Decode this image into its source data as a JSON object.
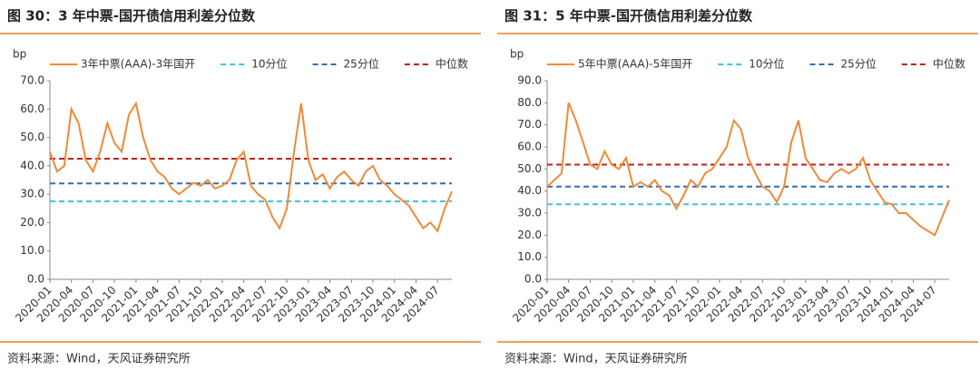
{
  "chart_data": [
    {
      "type": "line",
      "title": "图 30：3 年中票-国开债信用利差分位数",
      "y_label": "bp",
      "source": "资料来源：Wind，天风证券研究所",
      "categories": [
        "2020-01",
        null,
        null,
        "2020-04",
        null,
        null,
        "2020-07",
        null,
        null,
        "2020-10",
        null,
        null,
        "2021-01",
        null,
        null,
        "2021-04",
        null,
        null,
        "2021-07",
        null,
        null,
        "2021-10",
        null,
        null,
        "2022-01",
        null,
        null,
        "2022-04",
        null,
        null,
        "2022-07",
        null,
        null,
        "2022-10",
        null,
        null,
        "2023-01",
        null,
        null,
        "2023-04",
        null,
        null,
        "2023-07",
        null,
        null,
        "2023-10",
        null,
        null,
        "2024-01",
        null,
        null,
        "2024-04",
        null,
        null,
        "2024-07",
        null,
        null
      ],
      "series": [
        {
          "name": "3年中票(AAA)-3年国开",
          "color": "#f08a34",
          "values": [
            45,
            38,
            40,
            60,
            55,
            42,
            38,
            45,
            55,
            48,
            45,
            58,
            62,
            50,
            42,
            38,
            36,
            32,
            30,
            32,
            34,
            33,
            35,
            32,
            33,
            35,
            42,
            45,
            33,
            30,
            28,
            22,
            18,
            25,
            45,
            62,
            42,
            35,
            37,
            32,
            36,
            38,
            35,
            33,
            38,
            40,
            35,
            33,
            30,
            28,
            26,
            22,
            18,
            20,
            17,
            25,
            31
          ]
        }
      ],
      "reference_lines": [
        {
          "name": "10分位",
          "value": 27.5,
          "color": "#3ec3e8"
        },
        {
          "name": "25分位",
          "value": 33.8,
          "color": "#2e6fb7"
        },
        {
          "name": "中位数",
          "value": 42.5,
          "color": "#c0201e"
        }
      ],
      "ylim": [
        0,
        70
      ],
      "yticks": [
        {
          "value": 0,
          "label": "0.0"
        },
        {
          "value": 10,
          "label": "10.0"
        },
        {
          "value": 20,
          "label": "20.0"
        },
        {
          "value": 30,
          "label": "30.0"
        },
        {
          "value": 40,
          "label": "40.0"
        },
        {
          "value": 50,
          "label": "50.0"
        },
        {
          "value": 60,
          "label": "60.0"
        },
        {
          "value": 70,
          "label": "70.0"
        }
      ]
    },
    {
      "type": "line",
      "title": "图 31：5 年中票-国开债信用利差分位数",
      "y_label": "bp",
      "source": "资料来源：Wind，天风证券研究所",
      "categories": [
        "2020-01",
        null,
        null,
        "2020-04",
        null,
        null,
        "2020-07",
        null,
        null,
        "2020-10",
        null,
        null,
        "2021-01",
        null,
        null,
        "2021-04",
        null,
        null,
        "2021-07",
        null,
        null,
        "2021-10",
        null,
        null,
        "2022-01",
        null,
        null,
        "2022-04",
        null,
        null,
        "2022-07",
        null,
        null,
        "2022-10",
        null,
        null,
        "2023-01",
        null,
        null,
        "2023-04",
        null,
        null,
        "2023-07",
        null,
        null,
        "2023-10",
        null,
        null,
        "2024-01",
        null,
        null,
        "2024-04",
        null,
        null,
        "2024-07",
        null,
        null
      ],
      "series": [
        {
          "name": "5年中票(AAA)-5年国开",
          "color": "#f08a34",
          "values": [
            42,
            45,
            48,
            80,
            72,
            62,
            52,
            50,
            58,
            52,
            50,
            55,
            42,
            44,
            42,
            45,
            40,
            38,
            32,
            38,
            45,
            42,
            48,
            50,
            55,
            60,
            72,
            68,
            55,
            48,
            42,
            40,
            35,
            42,
            62,
            72,
            55,
            50,
            45,
            44,
            48,
            50,
            48,
            50,
            55,
            45,
            40,
            35,
            34,
            30,
            30,
            27,
            24,
            22,
            20,
            28,
            36
          ]
        }
      ],
      "reference_lines": [
        {
          "name": "10分位",
          "value": 34,
          "color": "#3ec3e8"
        },
        {
          "name": "25分位",
          "value": 42,
          "color": "#2e6fb7"
        },
        {
          "name": "中位数",
          "value": 52,
          "color": "#c0201e"
        }
      ],
      "ylim": [
        0,
        90
      ],
      "yticks": [
        {
          "value": 0,
          "label": "0.0"
        },
        {
          "value": 10,
          "label": "10.0"
        },
        {
          "value": 20,
          "label": "20.0"
        },
        {
          "value": 30,
          "label": "30.0"
        },
        {
          "value": 40,
          "label": "40.0"
        },
        {
          "value": 50,
          "label": "50.0"
        },
        {
          "value": 60,
          "label": "60.0"
        },
        {
          "value": 70,
          "label": "70.0"
        },
        {
          "value": 80,
          "label": "80.0"
        },
        {
          "value": 90,
          "label": "90.0"
        }
      ]
    }
  ]
}
